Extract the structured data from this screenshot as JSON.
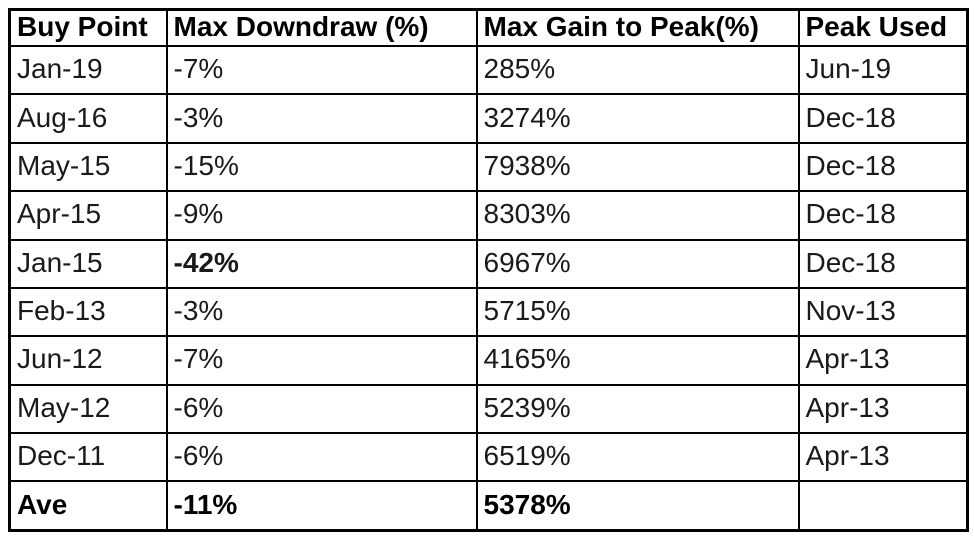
{
  "colors": {
    "highlight_red": "#c21f1f",
    "border": "#000000",
    "background": "#ffffff",
    "text": "#1a1a1a"
  },
  "chart_data": {
    "type": "table",
    "columns": [
      "Buy Point",
      "Max Downdraw (%)",
      "Max Gain to Peak(%)",
      "Peak Used"
    ],
    "rows": [
      [
        "Jan-19",
        "-7%",
        "285%",
        "Jun-19"
      ],
      [
        "Aug-16",
        "-3%",
        "3274%",
        "Dec-18"
      ],
      [
        "May-15",
        "-15%",
        "7938%",
        "Dec-18"
      ],
      [
        "Apr-15",
        "-9%",
        "8303%",
        "Dec-18"
      ],
      [
        "Jan-15",
        "-42%",
        "6967%",
        "Dec-18"
      ],
      [
        "Feb-13",
        "-3%",
        "5715%",
        "Nov-13"
      ],
      [
        "Jun-12",
        "-7%",
        "4165%",
        "Apr-13"
      ],
      [
        "May-12",
        "-6%",
        "5239%",
        "Apr-13"
      ],
      [
        "Dec-11",
        "-6%",
        "6519%",
        "Apr-13"
      ]
    ],
    "footer": [
      "Ave",
      "-11%",
      "5378%",
      ""
    ],
    "highlight": {
      "row": 4,
      "col": 1,
      "value": "-42%",
      "color": "#c21f1f",
      "note": "bold red cell"
    },
    "title": "",
    "legend_position": "none"
  }
}
